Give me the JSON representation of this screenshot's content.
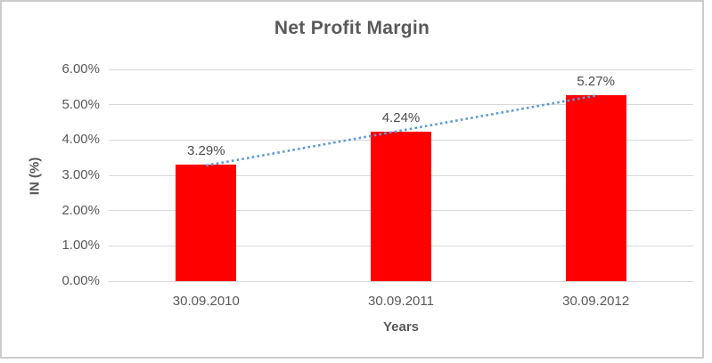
{
  "chart_data": {
    "type": "bar",
    "title": "Net Profit Margin",
    "xlabel": "Years",
    "ylabel": "IN (%)",
    "categories": [
      "30.09.2010",
      "30.09.2011",
      "30.09.2012"
    ],
    "series": [
      {
        "name": "Net Profit Margin",
        "values": [
          3.29,
          4.24,
          5.27
        ]
      }
    ],
    "data_labels": [
      "3.29%",
      "4.24%",
      "5.27%"
    ],
    "ylim": [
      0,
      6
    ],
    "ytick_step": 1,
    "ytick_labels": [
      "0.00%",
      "1.00%",
      "2.00%",
      "3.00%",
      "4.00%",
      "5.00%",
      "6.00%"
    ],
    "grid": true,
    "legend": "none",
    "trendline": {
      "type": "linear",
      "style": "dotted"
    }
  },
  "colors": {
    "bar": "#ff0000",
    "trendline": "#5b9bd5",
    "gridline": "#d9d9d9",
    "axis_text": "#595959",
    "title_text": "#595959",
    "frame_border": "#cccccc"
  }
}
